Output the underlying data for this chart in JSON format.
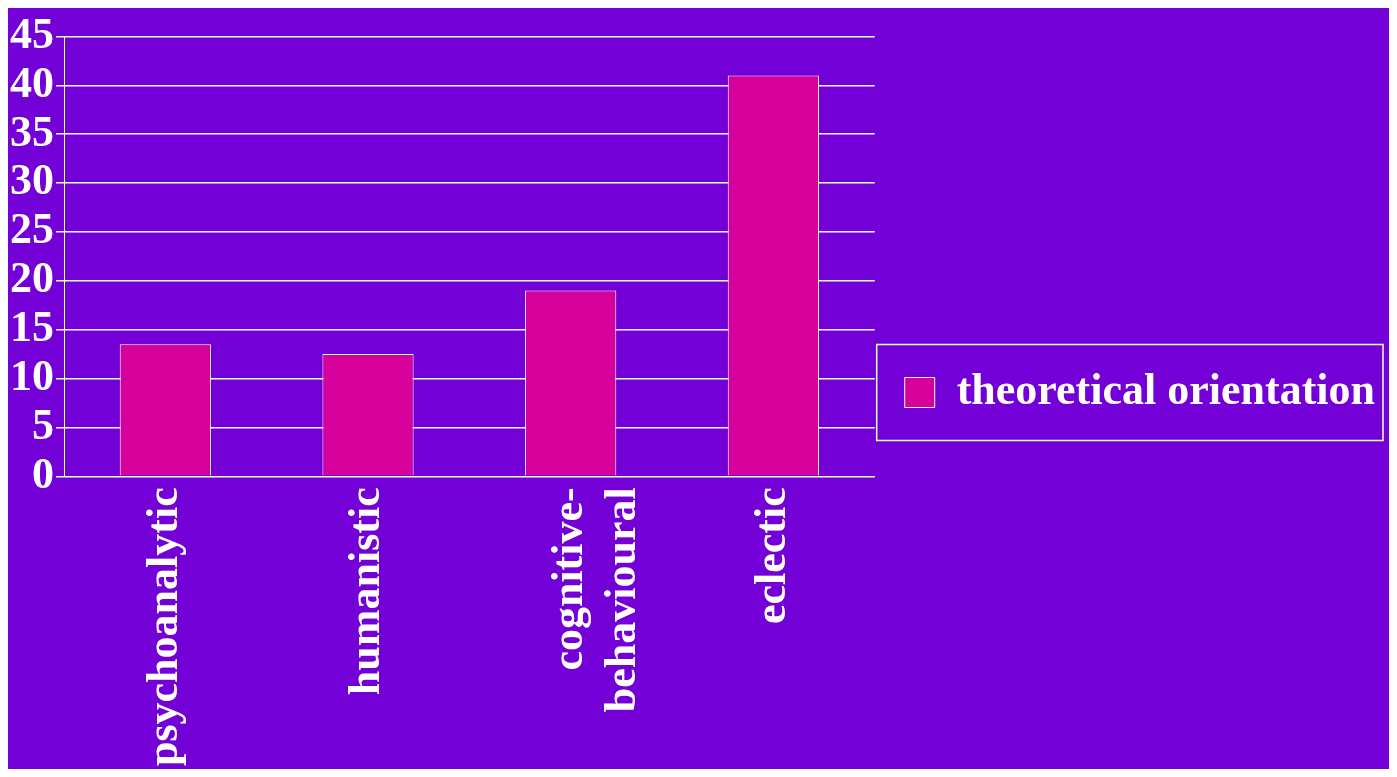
{
  "chart_data": {
    "type": "bar",
    "categories": [
      "psychoanalytic",
      "humanistic",
      "cognitive-behavioural",
      "eclectic"
    ],
    "series": [
      {
        "name": "theoretical orientation",
        "color": "#d6009a",
        "values": [
          13.5,
          12.5,
          19,
          41
        ]
      }
    ],
    "ylim": [
      0,
      45
    ],
    "yticks": [
      0,
      5,
      10,
      15,
      20,
      25,
      30,
      35,
      40,
      45
    ],
    "grid": "y",
    "legend": "right"
  }
}
